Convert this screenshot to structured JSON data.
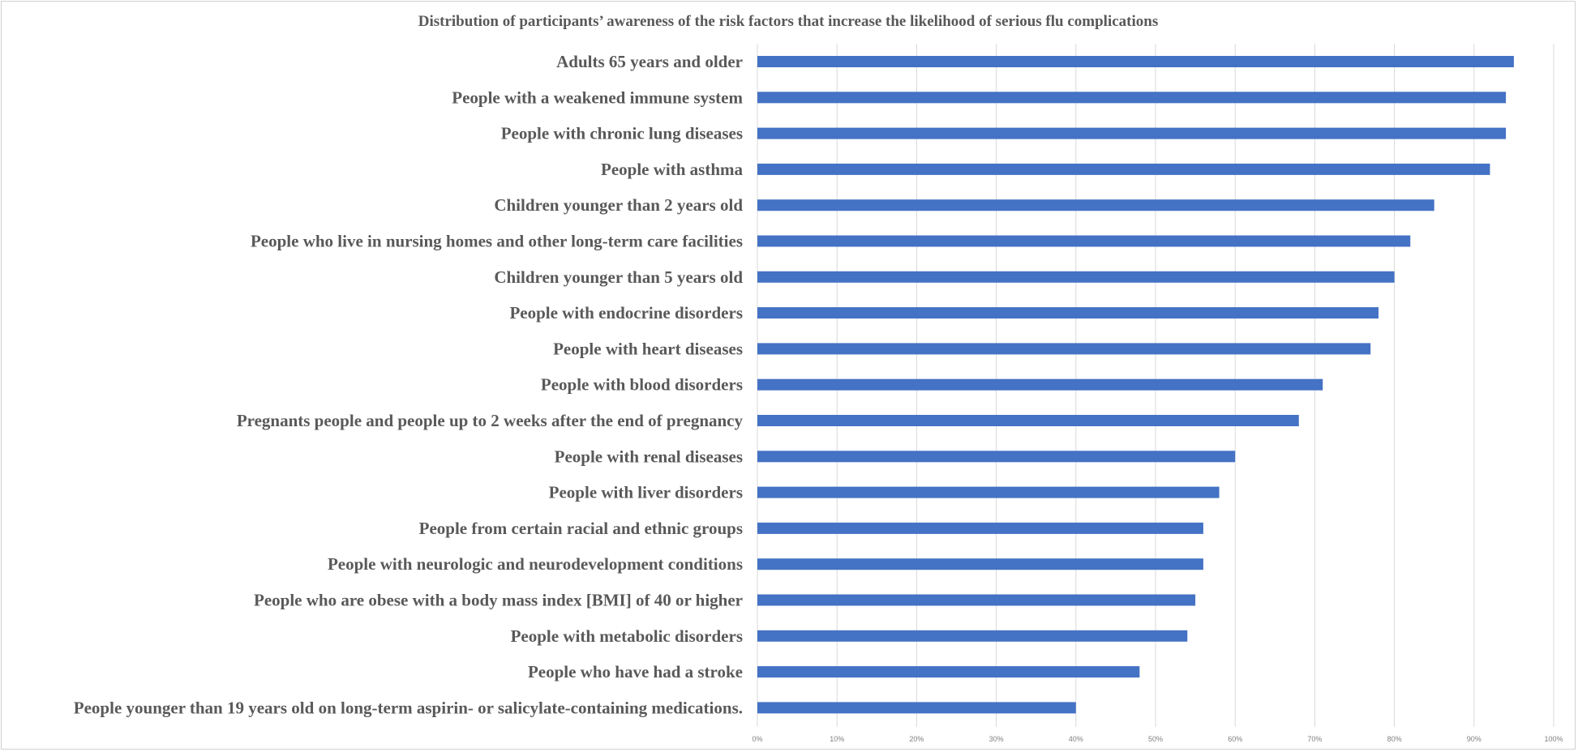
{
  "chart_data": {
    "type": "bar",
    "orientation": "horizontal",
    "title": "Distribution of participants’ awareness of the risk factors that increase the likelihood of serious flu complications",
    "xlabel": "",
    "ylabel": "",
    "xlim": [
      0,
      1
    ],
    "grid": true,
    "legend": "none",
    "bar_color": "#4472C4",
    "x_ticks": [
      "0%",
      "10%",
      "20%",
      "30%",
      "40%",
      "50%",
      "60%",
      "70%",
      "80%",
      "90%",
      "100%"
    ],
    "categories": [
      "Adults 65 years and older",
      "People with a weakened immune system ",
      "People with chronic lung diseases",
      "People with asthma",
      "Children younger than 2 years old",
      "People who live in nursing homes and other long-term care facilities",
      "Children younger than 5 years old ",
      "People with endocrine disorders ",
      "People with heart diseases",
      "People with blood disorders ",
      "Pregnants people and people up to 2 weeks after the end of pregnancy",
      "People with renal diseases",
      "People with liver disorders",
      "People from certain racial and ethnic groups ",
      "People with neurologic and neurodevelopment conditions",
      "People who are obese with a body mass index [BMI] of 40 or higher",
      "People with metabolic disorders ",
      "People who have had a stroke",
      "People younger than 19 years old on long-term aspirin- or salicylate-containing medications."
    ],
    "values": [
      0.95,
      0.94,
      0.94,
      0.92,
      0.85,
      0.82,
      0.8,
      0.78,
      0.77,
      0.71,
      0.68,
      0.6,
      0.58,
      0.56,
      0.56,
      0.55,
      0.54,
      0.48,
      0.4
    ]
  }
}
